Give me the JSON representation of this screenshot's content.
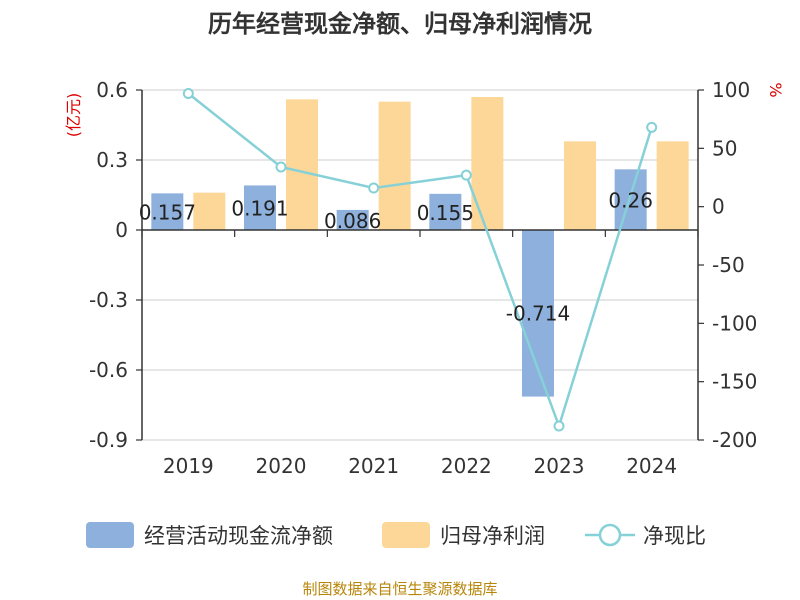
{
  "chart_data": {
    "type": "bar",
    "title": "历年经营现金净额、归母净利润情况",
    "categories": [
      "2019",
      "2020",
      "2021",
      "2022",
      "2023",
      "2024"
    ],
    "series": [
      {
        "name": "经营活动现金流净额",
        "type": "bar",
        "axis": "left",
        "color": "#8eb0dc",
        "values": [
          0.157,
          0.191,
          0.086,
          0.155,
          -0.714,
          0.26
        ],
        "labels": [
          "0.157",
          "0.191",
          "0.086",
          "0.155",
          "-0.714",
          "0.26"
        ]
      },
      {
        "name": "归母净利润",
        "type": "bar",
        "axis": "left",
        "color": "#fdd797",
        "values": [
          0.16,
          0.56,
          0.55,
          0.57,
          0.38,
          0.38
        ]
      },
      {
        "name": "净现比",
        "type": "line",
        "axis": "right",
        "color": "#86d1d7",
        "values": [
          97,
          34,
          16,
          27,
          -188,
          68
        ]
      }
    ],
    "left_axis": {
      "unit": "(亿元)",
      "ylim": [
        -0.9,
        0.6
      ],
      "ticks": [
        0.6,
        0.3,
        0,
        -0.3,
        -0.6,
        -0.9
      ],
      "tick_labels": [
        "0.6",
        "0.3",
        "0",
        "-0.3",
        "-0.6",
        "-0.9"
      ]
    },
    "right_axis": {
      "unit": "%",
      "ylim": [
        -200,
        100
      ],
      "ticks": [
        100,
        50,
        0,
        -50,
        -100,
        -150,
        -200
      ],
      "tick_labels": [
        "100",
        "50",
        "0",
        "-50",
        "-100",
        "-150",
        "-200"
      ]
    },
    "grid": true,
    "legend_position": "bottom"
  },
  "source": "制图数据来自恒生聚源数据库"
}
